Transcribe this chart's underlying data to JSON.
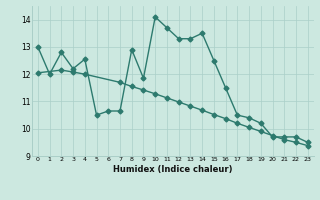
{
  "line1_x": [
    0,
    1,
    2,
    3,
    4,
    5,
    6,
    7,
    8,
    9,
    10,
    11,
    12,
    13,
    14,
    15,
    16,
    17,
    18,
    19,
    20,
    21,
    22,
    23
  ],
  "line1_y": [
    13.0,
    12.0,
    12.8,
    12.2,
    12.55,
    10.5,
    10.65,
    10.65,
    12.9,
    11.85,
    14.1,
    13.7,
    13.3,
    13.3,
    13.5,
    12.5,
    11.5,
    10.5,
    10.4,
    10.2,
    9.7,
    9.7,
    9.7,
    9.5
  ],
  "line2_x": [
    0,
    2,
    3,
    4,
    7,
    8,
    9,
    10,
    11,
    12,
    13,
    14,
    15,
    16,
    17,
    18,
    19,
    20,
    21,
    22,
    23
  ],
  "line2_y": [
    12.05,
    12.15,
    12.08,
    12.0,
    11.7,
    11.55,
    11.42,
    11.28,
    11.13,
    10.98,
    10.83,
    10.68,
    10.52,
    10.37,
    10.2,
    10.05,
    9.9,
    9.75,
    9.6,
    9.5,
    9.38
  ],
  "color": "#2d7a6e",
  "bg_color": "#cce8e0",
  "grid_color": "#aacfc8",
  "xlabel": "Humidex (Indice chaleur)",
  "xlim": [
    -0.5,
    23.5
  ],
  "ylim": [
    9.0,
    14.5
  ],
  "yticks": [
    9,
    10,
    11,
    12,
    13,
    14
  ],
  "xticks": [
    0,
    1,
    2,
    3,
    4,
    5,
    6,
    7,
    8,
    9,
    10,
    11,
    12,
    13,
    14,
    15,
    16,
    17,
    18,
    19,
    20,
    21,
    22,
    23
  ],
  "markersize": 2.5,
  "linewidth": 1.0
}
